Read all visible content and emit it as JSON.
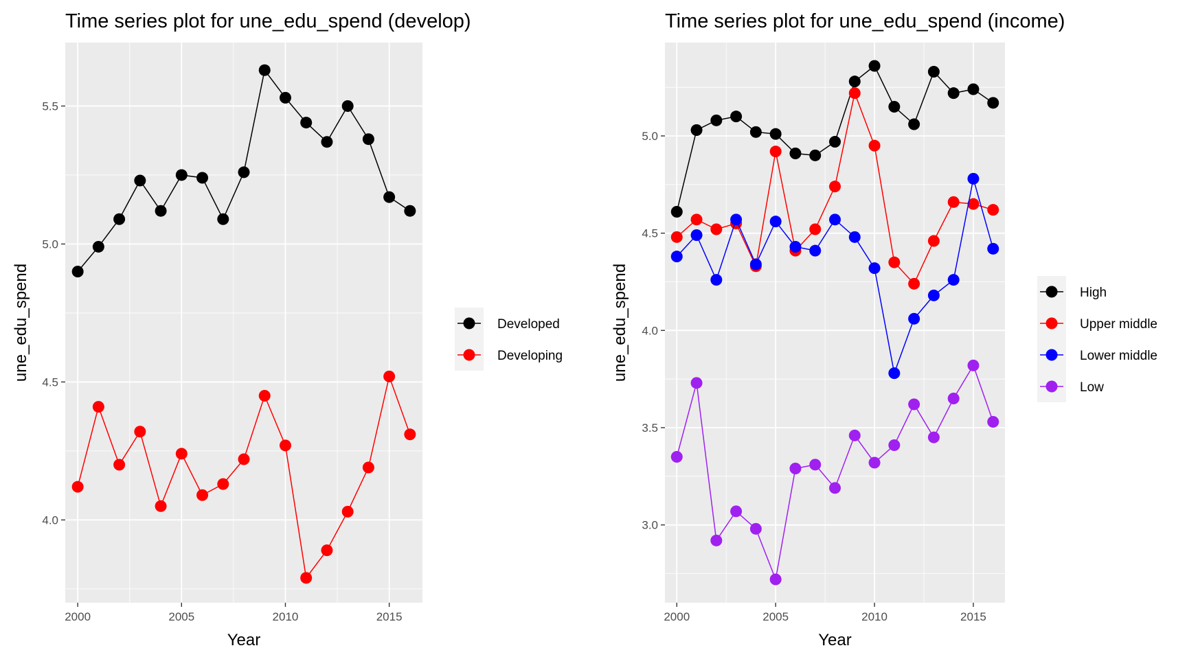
{
  "chart_data": [
    {
      "type": "line",
      "title": "Time series plot for une_edu_spend (develop)",
      "xlabel": "Year",
      "ylabel": "une_edu_spend",
      "xlim": [
        1999.4,
        2016.6
      ],
      "ylim": [
        3.7,
        5.73
      ],
      "x_ticks": [
        2000,
        2005,
        2010,
        2015
      ],
      "y_ticks": [
        4.0,
        4.5,
        5.0,
        5.5
      ],
      "x_tick_labels": [
        "2000",
        "2005",
        "2010",
        "2015"
      ],
      "y_tick_labels": [
        "4.0",
        "4.5",
        "5.0",
        "5.5"
      ],
      "grid": true,
      "legend_position": "right",
      "x": [
        2000,
        2001,
        2002,
        2003,
        2004,
        2005,
        2006,
        2007,
        2008,
        2009,
        2010,
        2011,
        2012,
        2013,
        2014,
        2015,
        2016
      ],
      "series": [
        {
          "name": "Developed",
          "color": "#000000",
          "values": [
            4.9,
            4.99,
            5.09,
            5.23,
            5.12,
            5.25,
            5.24,
            5.09,
            5.26,
            5.63,
            5.53,
            5.44,
            5.37,
            5.5,
            5.38,
            5.17,
            5.12
          ]
        },
        {
          "name": "Developing",
          "color": "#ff0000",
          "values": [
            4.12,
            4.41,
            4.2,
            4.32,
            4.05,
            4.24,
            4.09,
            4.13,
            4.22,
            4.45,
            4.27,
            3.79,
            3.89,
            4.03,
            4.19,
            4.52,
            4.31
          ]
        }
      ]
    },
    {
      "type": "line",
      "title": "Time series plot for une_edu_spend (income)",
      "xlabel": "Year",
      "ylabel": "une_edu_spend",
      "xlim": [
        1999.4,
        2016.6
      ],
      "ylim": [
        2.6,
        5.48
      ],
      "x_ticks": [
        2000,
        2005,
        2010,
        2015
      ],
      "y_ticks": [
        3.0,
        3.5,
        4.0,
        4.5,
        5.0
      ],
      "x_tick_labels": [
        "2000",
        "2005",
        "2010",
        "2015"
      ],
      "y_tick_labels": [
        "3.0",
        "3.5",
        "4.0",
        "4.5",
        "5.0"
      ],
      "grid": true,
      "legend_position": "right",
      "x": [
        2000,
        2001,
        2002,
        2003,
        2004,
        2005,
        2006,
        2007,
        2008,
        2009,
        2010,
        2011,
        2012,
        2013,
        2014,
        2015,
        2016
      ],
      "series": [
        {
          "name": "High",
          "color": "#000000",
          "values": [
            4.61,
            5.03,
            5.08,
            5.1,
            5.02,
            5.01,
            4.91,
            4.9,
            4.97,
            5.28,
            5.36,
            5.15,
            5.06,
            5.33,
            5.22,
            5.24,
            5.17
          ]
        },
        {
          "name": "Upper middle",
          "color": "#ff0000",
          "values": [
            4.48,
            4.57,
            4.52,
            4.55,
            4.33,
            4.92,
            4.41,
            4.52,
            4.74,
            5.22,
            4.95,
            4.35,
            4.24,
            4.46,
            4.66,
            4.65,
            4.62
          ]
        },
        {
          "name": "Lower middle",
          "color": "#0000ff",
          "values": [
            4.38,
            4.49,
            4.26,
            4.57,
            4.34,
            4.56,
            4.43,
            4.41,
            4.57,
            4.48,
            4.32,
            3.78,
            4.06,
            4.18,
            4.26,
            4.78,
            4.42
          ]
        },
        {
          "name": "Low",
          "color": "#a020f0",
          "values": [
            3.35,
            3.73,
            2.92,
            3.07,
            2.98,
            2.72,
            3.29,
            3.31,
            3.19,
            3.46,
            3.32,
            3.41,
            3.62,
            3.45,
            3.65,
            3.82,
            3.53
          ]
        }
      ]
    }
  ]
}
